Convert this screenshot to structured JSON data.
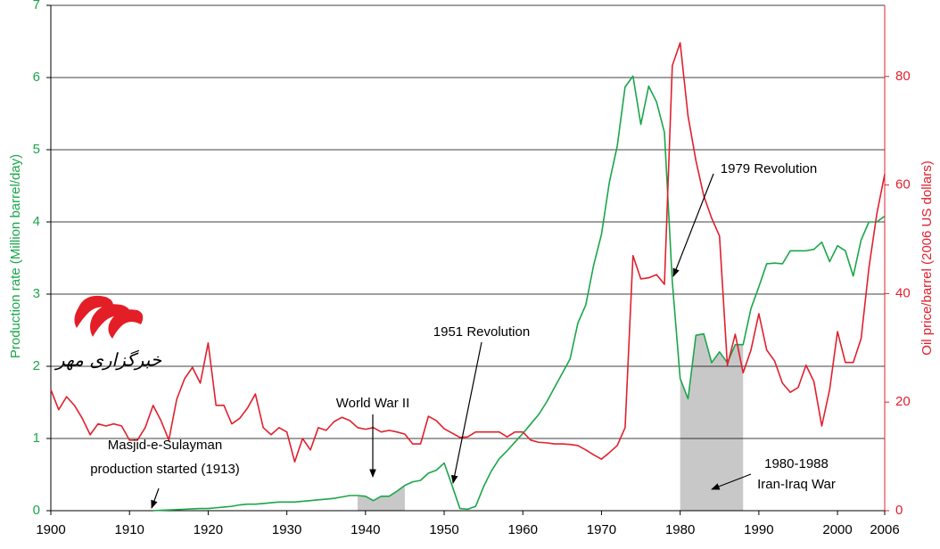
{
  "chart_data": {
    "type": "line",
    "y_label": "Production rate (Million barrel/day)",
    "y2_label": "Oil price/barrel (2006 US dollars)",
    "x": [
      1900,
      1901,
      1902,
      1903,
      1904,
      1905,
      1906,
      1907,
      1908,
      1909,
      1910,
      1911,
      1912,
      1913,
      1914,
      1915,
      1916,
      1917,
      1918,
      1919,
      1920,
      1921,
      1922,
      1923,
      1924,
      1925,
      1926,
      1927,
      1928,
      1929,
      1930,
      1931,
      1932,
      1933,
      1934,
      1935,
      1936,
      1937,
      1938,
      1939,
      1940,
      1941,
      1942,
      1943,
      1944,
      1945,
      1946,
      1947,
      1948,
      1949,
      1950,
      1951,
      1952,
      1953,
      1954,
      1955,
      1956,
      1957,
      1958,
      1959,
      1960,
      1961,
      1962,
      1963,
      1964,
      1965,
      1966,
      1967,
      1968,
      1969,
      1970,
      1971,
      1972,
      1973,
      1974,
      1975,
      1976,
      1977,
      1978,
      1979,
      1980,
      1981,
      1982,
      1983,
      1984,
      1985,
      1986,
      1987,
      1988,
      1989,
      1990,
      1991,
      1992,
      1993,
      1994,
      1995,
      1996,
      1997,
      1998,
      1999,
      2000,
      2001,
      2002,
      2003,
      2004,
      2005,
      2006
    ],
    "series": [
      {
        "name": "Production rate",
        "color": "#1aa64a",
        "values": [
          null,
          null,
          null,
          null,
          null,
          null,
          null,
          null,
          null,
          null,
          null,
          null,
          null,
          0,
          0.005,
          0.01,
          0.015,
          0.02,
          0.025,
          0.03,
          0.03,
          0.04,
          0.05,
          0.06,
          0.08,
          0.09,
          0.09,
          0.1,
          0.11,
          0.12,
          0.12,
          0.12,
          0.13,
          0.14,
          0.15,
          0.16,
          0.17,
          0.19,
          0.21,
          0.21,
          0.2,
          0.14,
          0.2,
          0.2,
          0.27,
          0.35,
          0.4,
          0.42,
          0.52,
          0.56,
          0.66,
          0.35,
          0.03,
          0.02,
          0.06,
          0.33,
          0.55,
          0.72,
          0.83,
          0.95,
          1.07,
          1.2,
          1.33,
          1.5,
          1.7,
          1.9,
          2.1,
          2.6,
          2.85,
          3.4,
          3.83,
          4.55,
          5.05,
          5.87,
          6.02,
          5.35,
          5.88,
          5.66,
          5.24,
          3.17,
          1.83,
          1.55,
          2.43,
          2.45,
          2.05,
          2.2,
          2.05,
          2.3,
          2.3,
          2.8,
          3.1,
          3.42,
          3.43,
          3.42,
          3.6,
          3.6,
          3.6,
          3.62,
          3.72,
          3.45,
          3.67,
          3.6,
          3.25,
          3.75,
          4.0,
          4.0,
          4.08
        ]
      },
      {
        "name": "Oil price",
        "color": "#e0202e",
        "axis": "y2",
        "values": [
          22.3,
          18.6,
          21,
          19.4,
          17,
          14,
          16,
          15.6,
          16,
          15.6,
          13,
          13,
          15.3,
          19.4,
          16.6,
          13,
          20.5,
          24.3,
          26.4,
          23.5,
          30.9,
          19.4,
          19.4,
          16,
          17,
          18.9,
          21.5,
          15.3,
          14,
          15.3,
          14.5,
          9,
          13.3,
          11.2,
          15.3,
          14.8,
          16.4,
          17.2,
          16.6,
          15.3,
          15,
          15.3,
          14.5,
          14.8,
          14.5,
          14.1,
          12.3,
          12.3,
          17.4,
          16.6,
          15.1,
          14.3,
          13.5,
          13.6,
          14.5,
          14.5,
          14.5,
          14.5,
          13.6,
          14.5,
          14.5,
          13,
          12.6,
          12.5,
          12.3,
          12.3,
          12.2,
          12,
          11.2,
          10.3,
          9.5,
          10.7,
          12,
          15.3,
          47,
          42.7,
          42.9,
          43.5,
          41.7,
          82,
          86.2,
          72.7,
          64.5,
          58,
          53.9,
          50.6,
          26.8,
          32.5,
          25.4,
          29.6,
          36.3,
          29.6,
          27.6,
          23.5,
          21.8,
          22.7,
          26.8,
          23.8,
          15.6,
          22.3,
          33,
          27.3,
          27.3,
          31.7,
          44.8,
          54.7,
          62
        ]
      }
    ],
    "xlim": [
      1900,
      2006
    ],
    "xticks": [
      1900,
      1910,
      1920,
      1930,
      1940,
      1950,
      1960,
      1970,
      1980,
      1990,
      2000,
      2006
    ],
    "ylim": [
      0,
      7
    ],
    "yticks": [
      0,
      1,
      2,
      3,
      4,
      5,
      6,
      7
    ],
    "y2lim": [
      0,
      93.1
    ],
    "y2ticks": [
      0,
      20,
      40,
      60,
      80
    ],
    "grid": true,
    "shaded_spans": [
      [
        1939,
        1945
      ],
      [
        1980,
        1988
      ]
    ],
    "shade_color": "#c8c8c8",
    "annotations": [
      {
        "lines": [
          "Masjid-e-Sulayman",
          "production started (1913)"
        ]
      },
      {
        "lines": [
          "World War II"
        ]
      },
      {
        "lines": [
          "1951 Revolution"
        ]
      },
      {
        "lines": [
          "1979 Revolution"
        ]
      },
      {
        "lines": [
          "1980-1988",
          "Iran-Iraq War"
        ]
      }
    ],
    "logo_text": "خبرگزاری مهر"
  }
}
